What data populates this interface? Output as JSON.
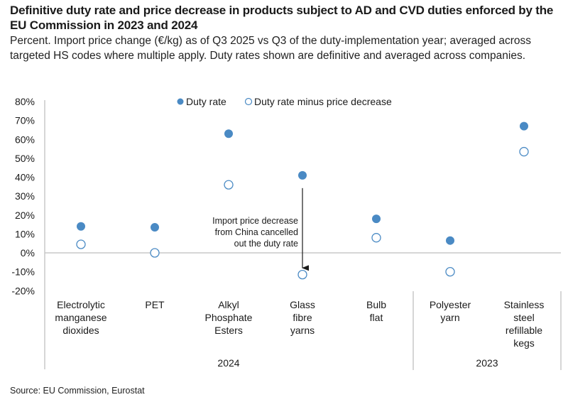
{
  "title": "Definitive duty rate and price decrease in products subject to AD and CVD duties enforced by the EU Commission in 2023 and 2024",
  "subtitle": "Percent. Import price change (€/kg) as of Q3 2025 vs Q3 of the duty-implementation year; averaged across targeted HS codes where multiple apply. Duty rates shown are definitive and averaged across companies.",
  "source": "Source: EU Commission, Eurostat",
  "colors": {
    "accent": "#4a8ac4",
    "axis": "#c8c8c8"
  },
  "chart_data": {
    "type": "scatter",
    "title": "Definitive duty rate and price decrease in products subject to AD and CVD duties enforced by the EU Commission in 2023 and 2024",
    "xlabel": "",
    "ylabel": "Percent",
    "ylim": [
      -20,
      80
    ],
    "yticks": [
      80,
      70,
      60,
      50,
      40,
      30,
      20,
      10,
      0,
      -10,
      -20
    ],
    "ytick_labels": [
      "80%",
      "70%",
      "60%",
      "50%",
      "40%",
      "30%",
      "20%",
      "10%",
      "0%",
      "-10%",
      "-20%"
    ],
    "grid": false,
    "legend_position": "top-center",
    "categories": [
      [
        "Electrolytic",
        "manganese",
        "dioxides"
      ],
      [
        "PET"
      ],
      [
        "Alkyl",
        "Phosphate",
        "Esters"
      ],
      [
        "Glass",
        "fibre",
        "yarns"
      ],
      [
        "Bulb",
        "flat"
      ],
      [
        "Polyester",
        "yarn"
      ],
      [
        "Stainless",
        "steel",
        "refillable",
        "kegs"
      ]
    ],
    "groups": [
      {
        "label": "2024",
        "start": 0,
        "end": 4
      },
      {
        "label": "2023",
        "start": 5,
        "end": 6
      }
    ],
    "series": [
      {
        "name": "Duty rate",
        "marker": "filled",
        "values": [
          14,
          13.5,
          63,
          41,
          18,
          6.5,
          67
        ]
      },
      {
        "name": "Duty rate minus price decrease",
        "marker": "hollow",
        "values": [
          4.5,
          0,
          36,
          -11.5,
          8,
          -10,
          53.5
        ]
      }
    ],
    "annotations": [
      {
        "text": [
          "Import price decrease",
          "from China cancelled",
          "out the duty rate"
        ],
        "category_index": 3,
        "arrow_from": 41,
        "arrow_to": -8
      }
    ]
  }
}
